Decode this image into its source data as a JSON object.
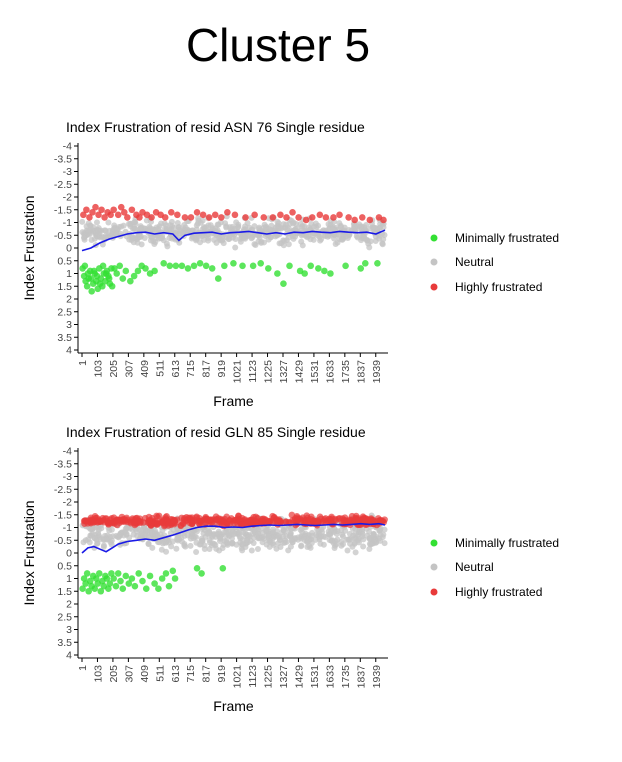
{
  "page": {
    "title": "Cluster 5"
  },
  "colors": {
    "minimal": "#33e033",
    "neutral": "#c4c4c4",
    "high": "#e83a3a",
    "trend": "#1a1ae6"
  },
  "chart_data": [
    {
      "type": "scatter",
      "title": "Index Frustration of resid ASN 76 Single residue",
      "xlabel": "Frame",
      "ylabel": "Index Frustration",
      "ylim": [
        -4,
        4
      ],
      "y_inverted": true,
      "y_ticks": [
        -4,
        -3.5,
        -3,
        -2.5,
        -2,
        -1.5,
        -1,
        -0.5,
        0,
        0.5,
        1,
        1.5,
        2,
        2.5,
        3,
        3.5,
        4
      ],
      "y_tick_labels": [
        "-4",
        "-3.5",
        "-3",
        "-2.5",
        "-2",
        "-1.5",
        "-1",
        "-0.5",
        "0",
        "0.5",
        "1",
        "1.5",
        "2",
        "2.5",
        "3",
        "3.5",
        "4"
      ],
      "x_ticks": [
        "1",
        "103",
        "205",
        "307",
        "409",
        "511",
        "613",
        "715",
        "817",
        "919",
        "1021",
        "1123",
        "1225",
        "1327",
        "1429",
        "1531",
        "1633",
        "1735",
        "1837",
        "1939"
      ],
      "xlim": [
        1,
        2000
      ],
      "grid": false,
      "legend_position": "right",
      "series": [
        {
          "name": "Minimally frustrated",
          "color_key": "minimal",
          "points": [
            [
              5,
              0.8
            ],
            [
              15,
              1.1
            ],
            [
              25,
              1.3
            ],
            [
              35,
              1.5
            ],
            [
              45,
              1.2
            ],
            [
              55,
              0.9
            ],
            [
              65,
              1.7
            ],
            [
              75,
              1.4
            ],
            [
              85,
              1.0
            ],
            [
              95,
              1.3
            ],
            [
              105,
              1.6
            ],
            [
              115,
              0.8
            ],
            [
              125,
              1.2
            ],
            [
              135,
              1.5
            ],
            [
              145,
              1.0
            ],
            [
              155,
              1.3
            ],
            [
              165,
              0.9
            ],
            [
              175,
              1.1
            ],
            [
              185,
              1.4
            ],
            [
              195,
              0.8
            ],
            [
              20,
              0.7
            ],
            [
              40,
              1.0
            ],
            [
              60,
              1.2
            ],
            [
              80,
              0.9
            ],
            [
              100,
              1.1
            ],
            [
              120,
              1.4
            ],
            [
              140,
              0.7
            ],
            [
              160,
              1.0
            ],
            [
              180,
              1.2
            ],
            [
              200,
              1.5
            ],
            [
              215,
              0.8
            ],
            [
              230,
              1.0
            ],
            [
              250,
              0.7
            ],
            [
              270,
              1.2
            ],
            [
              290,
              0.9
            ],
            [
              320,
              1.3
            ],
            [
              345,
              1.1
            ],
            [
              370,
              0.9
            ],
            [
              395,
              0.7
            ],
            [
              420,
              0.8
            ],
            [
              450,
              1.0
            ],
            [
              480,
              0.9
            ],
            [
              540,
              0.6
            ],
            [
              580,
              0.7
            ],
            [
              620,
              0.7
            ],
            [
              660,
              0.7
            ],
            [
              700,
              0.8
            ],
            [
              740,
              0.7
            ],
            [
              780,
              0.6
            ],
            [
              820,
              0.7
            ],
            [
              860,
              0.8
            ],
            [
              900,
              1.2
            ],
            [
              940,
              0.7
            ],
            [
              1000,
              0.6
            ],
            [
              1060,
              0.7
            ],
            [
              1130,
              0.7
            ],
            [
              1180,
              0.6
            ],
            [
              1230,
              0.8
            ],
            [
              1290,
              1.0
            ],
            [
              1330,
              1.4
            ],
            [
              1370,
              0.7
            ],
            [
              1440,
              0.9
            ],
            [
              1470,
              1.0
            ],
            [
              1510,
              0.7
            ],
            [
              1560,
              0.8
            ],
            [
              1600,
              0.9
            ],
            [
              1640,
              1.0
            ],
            [
              1740,
              0.7
            ],
            [
              1840,
              0.8
            ],
            [
              1870,
              0.6
            ],
            [
              1950,
              0.6
            ]
          ]
        },
        {
          "name": "Neutral",
          "color_key": "neutral",
          "points": []
        },
        {
          "name": "Highly frustrated",
          "color_key": "high",
          "points": [
            [
              10,
              -1.3
            ],
            [
              30,
              -1.5
            ],
            [
              50,
              -1.2
            ],
            [
              70,
              -1.4
            ],
            [
              90,
              -1.6
            ],
            [
              110,
              -1.3
            ],
            [
              130,
              -1.5
            ],
            [
              150,
              -1.2
            ],
            [
              170,
              -1.4
            ],
            [
              190,
              -1.3
            ],
            [
              210,
              -1.5
            ],
            [
              240,
              -1.3
            ],
            [
              260,
              -1.6
            ],
            [
              280,
              -1.4
            ],
            [
              300,
              -1.2
            ],
            [
              330,
              -1.5
            ],
            [
              360,
              -1.3
            ],
            [
              380,
              -1.2
            ],
            [
              400,
              -1.4
            ],
            [
              430,
              -1.3
            ],
            [
              460,
              -1.2
            ],
            [
              490,
              -1.4
            ],
            [
              520,
              -1.3
            ],
            [
              550,
              -1.2
            ],
            [
              590,
              -1.4
            ],
            [
              630,
              -1.3
            ],
            [
              680,
              -1.2
            ],
            [
              720,
              -1.2
            ],
            [
              760,
              -1.4
            ],
            [
              800,
              -1.3
            ],
            [
              840,
              -1.2
            ],
            [
              880,
              -1.3
            ],
            [
              920,
              -1.2
            ],
            [
              960,
              -1.4
            ],
            [
              1010,
              -1.3
            ],
            [
              1080,
              -1.2
            ],
            [
              1140,
              -1.3
            ],
            [
              1200,
              -1.2
            ],
            [
              1260,
              -1.2
            ],
            [
              1310,
              -1.3
            ],
            [
              1350,
              -1.2
            ],
            [
              1390,
              -1.4
            ],
            [
              1430,
              -1.2
            ],
            [
              1480,
              -1.1
            ],
            [
              1520,
              -1.2
            ],
            [
              1570,
              -1.3
            ],
            [
              1610,
              -1.2
            ],
            [
              1660,
              -1.2
            ],
            [
              1700,
              -1.3
            ],
            [
              1760,
              -1.2
            ],
            [
              1800,
              -1.1
            ],
            [
              1850,
              -1.2
            ],
            [
              1900,
              -1.1
            ],
            [
              1960,
              -1.2
            ],
            [
              1990,
              -1.1
            ]
          ]
        }
      ],
      "trend_line": {
        "color_key": "trend",
        "points": [
          [
            1,
            0.1
          ],
          [
            60,
            0.0
          ],
          [
            120,
            -0.2
          ],
          [
            180,
            -0.35
          ],
          [
            240,
            -0.45
          ],
          [
            300,
            -0.55
          ],
          [
            360,
            -0.6
          ],
          [
            420,
            -0.62
          ],
          [
            480,
            -0.55
          ],
          [
            540,
            -0.6
          ],
          [
            600,
            -0.55
          ],
          [
            640,
            -0.3
          ],
          [
            680,
            -0.5
          ],
          [
            740,
            -0.58
          ],
          [
            800,
            -0.6
          ],
          [
            860,
            -0.62
          ],
          [
            920,
            -0.55
          ],
          [
            980,
            -0.6
          ],
          [
            1040,
            -0.62
          ],
          [
            1100,
            -0.65
          ],
          [
            1160,
            -0.6
          ],
          [
            1220,
            -0.55
          ],
          [
            1280,
            -0.6
          ],
          [
            1340,
            -0.55
          ],
          [
            1400,
            -0.62
          ],
          [
            1460,
            -0.6
          ],
          [
            1520,
            -0.65
          ],
          [
            1580,
            -0.62
          ],
          [
            1640,
            -0.6
          ],
          [
            1700,
            -0.65
          ],
          [
            1760,
            -0.62
          ],
          [
            1820,
            -0.6
          ],
          [
            1880,
            -0.62
          ],
          [
            1940,
            -0.55
          ],
          [
            2000,
            -0.7
          ]
        ]
      },
      "neutral_band": {
        "y_center": -0.6,
        "spread": 0.7,
        "count": 600,
        "seed": 7
      }
    },
    {
      "type": "scatter",
      "title": "Index Frustration of resid GLN 85 Single residue",
      "xlabel": "Frame",
      "ylabel": "Index Frustration",
      "ylim": [
        -4,
        4
      ],
      "y_inverted": true,
      "y_ticks": [
        -4,
        -3.5,
        -3,
        -2.5,
        -2,
        -1.5,
        -1,
        -0.5,
        0,
        0.5,
        1,
        1.5,
        2,
        2.5,
        3,
        3.5,
        4
      ],
      "y_tick_labels": [
        "-4",
        "-3.5",
        "-3",
        "-2.5",
        "-2",
        "-1.5",
        "-1",
        "-0.5",
        "0",
        "0.5",
        "1",
        "1.5",
        "2",
        "2.5",
        "3",
        "3.5",
        "4"
      ],
      "x_ticks": [
        "1",
        "103",
        "205",
        "307",
        "409",
        "511",
        "613",
        "715",
        "817",
        "919",
        "1021",
        "1123",
        "1225",
        "1327",
        "1429",
        "1531",
        "1633",
        "1735",
        "1837",
        "1939"
      ],
      "xlim": [
        1,
        2000
      ],
      "grid": false,
      "legend_position": "right",
      "series": [
        {
          "name": "Minimally frustrated",
          "color_key": "minimal",
          "points": [
            [
              5,
              1.4
            ],
            [
              15,
              1.0
            ],
            [
              25,
              1.2
            ],
            [
              35,
              0.8
            ],
            [
              45,
              1.5
            ],
            [
              55,
              1.1
            ],
            [
              65,
              1.3
            ],
            [
              75,
              0.9
            ],
            [
              85,
              1.4
            ],
            [
              95,
              1.0
            ],
            [
              105,
              1.2
            ],
            [
              115,
              0.8
            ],
            [
              125,
              1.5
            ],
            [
              135,
              1.1
            ],
            [
              145,
              1.3
            ],
            [
              155,
              0.9
            ],
            [
              165,
              1.0
            ],
            [
              175,
              1.4
            ],
            [
              185,
              1.2
            ],
            [
              195,
              0.8
            ],
            [
              210,
              1.0
            ],
            [
              225,
              1.3
            ],
            [
              240,
              0.8
            ],
            [
              255,
              1.1
            ],
            [
              270,
              1.4
            ],
            [
              290,
              0.9
            ],
            [
              310,
              1.2
            ],
            [
              330,
              1.0
            ],
            [
              350,
              1.3
            ],
            [
              375,
              0.8
            ],
            [
              400,
              1.1
            ],
            [
              425,
              1.4
            ],
            [
              450,
              0.9
            ],
            [
              480,
              1.2
            ],
            [
              505,
              1.4
            ],
            [
              530,
              1.0
            ],
            [
              555,
              0.8
            ],
            [
              575,
              1.3
            ],
            [
              600,
              0.7
            ],
            [
              615,
              1.0
            ],
            [
              760,
              0.6
            ],
            [
              790,
              0.8
            ],
            [
              930,
              0.6
            ]
          ]
        },
        {
          "name": "Neutral",
          "color_key": "neutral",
          "points": []
        },
        {
          "name": "Highly frustrated",
          "color_key": "high",
          "points": []
        }
      ],
      "trend_line": {
        "color_key": "trend",
        "points": [
          [
            1,
            0.0
          ],
          [
            40,
            -0.2
          ],
          [
            80,
            -0.25
          ],
          [
            120,
            -0.15
          ],
          [
            160,
            -0.05
          ],
          [
            200,
            -0.2
          ],
          [
            240,
            -0.35
          ],
          [
            300,
            -0.45
          ],
          [
            360,
            -0.5
          ],
          [
            420,
            -0.55
          ],
          [
            480,
            -0.5
          ],
          [
            540,
            -0.6
          ],
          [
            600,
            -0.7
          ],
          [
            650,
            -0.8
          ],
          [
            700,
            -0.9
          ],
          [
            760,
            -1.0
          ],
          [
            820,
            -1.05
          ],
          [
            880,
            -1.05
          ],
          [
            940,
            -1.0
          ],
          [
            1000,
            -1.02
          ],
          [
            1060,
            -1.0
          ],
          [
            1120,
            -1.05
          ],
          [
            1180,
            -1.08
          ],
          [
            1240,
            -1.1
          ],
          [
            1300,
            -1.08
          ],
          [
            1360,
            -1.1
          ],
          [
            1420,
            -1.12
          ],
          [
            1480,
            -1.1
          ],
          [
            1540,
            -1.08
          ],
          [
            1600,
            -1.1
          ],
          [
            1660,
            -1.12
          ],
          [
            1720,
            -1.1
          ],
          [
            1780,
            -1.12
          ],
          [
            1840,
            -1.15
          ],
          [
            1900,
            -1.12
          ],
          [
            1960,
            -1.15
          ],
          [
            2000,
            -1.1
          ]
        ]
      },
      "neutral_band": {
        "y_center": -0.7,
        "spread": 0.8,
        "count": 600,
        "seed": 13
      },
      "high_band": {
        "y_center": -1.25,
        "spread": 0.25,
        "count": 450,
        "seed": 29
      }
    }
  ]
}
